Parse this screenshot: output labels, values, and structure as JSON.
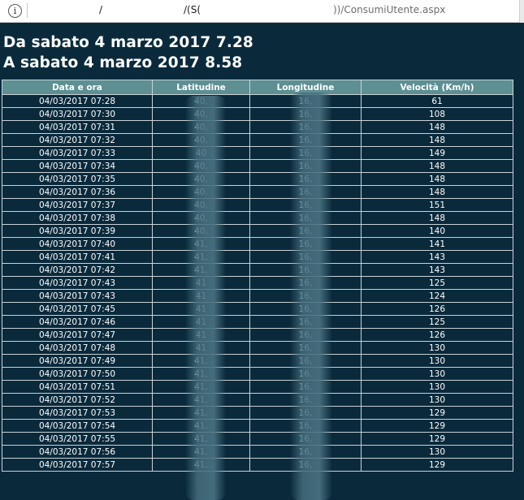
{
  "browser": {
    "url_segments": [
      "/",
      "/(S(",
      "))/ConsumiUtente.aspx"
    ]
  },
  "page": {
    "title_from": "Da sabato 4 marzo 2017 7.28",
    "title_to": "A sabato 4 marzo 2017 8.58"
  },
  "table": {
    "headers": [
      "Data e ora",
      "Latitudine",
      "Longitudine",
      "Velocità (Km/h)"
    ],
    "rows": [
      [
        "04/03/2017 07:28",
        "40,",
        "16,",
        "61"
      ],
      [
        "04/03/2017 07:30",
        "40,",
        "16,",
        "108"
      ],
      [
        "04/03/2017 07:31",
        "40,",
        "16,",
        "148"
      ],
      [
        "04/03/2017 07:32",
        "40,",
        "16,",
        "148"
      ],
      [
        "04/03/2017 07:33",
        "40",
        "16,",
        "149"
      ],
      [
        "04/03/2017 07:34",
        "40,",
        "16,",
        "148"
      ],
      [
        "04/03/2017 07:35",
        "40,",
        "16,",
        "148"
      ],
      [
        "04/03/2017 07:36",
        "40,",
        "16,",
        "148"
      ],
      [
        "04/03/2017 07:37",
        "40,",
        "16,",
        "151"
      ],
      [
        "04/03/2017 07:38",
        "40,",
        "16,",
        "148"
      ],
      [
        "04/03/2017 07:39",
        "40,",
        "16,",
        "140"
      ],
      [
        "04/03/2017 07:40",
        "41,",
        "16,",
        "141"
      ],
      [
        "04/03/2017 07:41",
        "41,",
        "16,",
        "143"
      ],
      [
        "04/03/2017 07:42",
        "41,",
        "16,",
        "143"
      ],
      [
        "04/03/2017 07:43",
        "41",
        "16,",
        "125"
      ],
      [
        "04/03/2017 07:43",
        "41",
        "16,",
        "124"
      ],
      [
        "04/03/2017 07:45",
        "41",
        "16,",
        "126"
      ],
      [
        "04/03/2017 07:46",
        "41",
        "16,",
        "125"
      ],
      [
        "04/03/2017 07:47",
        "41",
        "16,",
        "126"
      ],
      [
        "04/03/2017 07:48",
        "41",
        "16,",
        "130"
      ],
      [
        "04/03/2017 07:49",
        "41,",
        "16,",
        "130"
      ],
      [
        "04/03/2017 07:50",
        "41,",
        "16,",
        "130"
      ],
      [
        "04/03/2017 07:51",
        "41,",
        "16,",
        "130"
      ],
      [
        "04/03/2017 07:52",
        "41,",
        "16,",
        "130"
      ],
      [
        "04/03/2017 07:53",
        "41,",
        "16,",
        "129"
      ],
      [
        "04/03/2017 07:54",
        "41,",
        "16,",
        "129"
      ],
      [
        "04/03/2017 07:55",
        "41,",
        "16,",
        "129"
      ],
      [
        "04/03/2017 07:56",
        "41,",
        "16,",
        "130"
      ],
      [
        "04/03/2017 07:57",
        "41,",
        "16,",
        "129"
      ]
    ]
  },
  "colors": {
    "page_background": "#0a2a3c",
    "header_background": "#5d8f93",
    "text": "#ffffff"
  }
}
